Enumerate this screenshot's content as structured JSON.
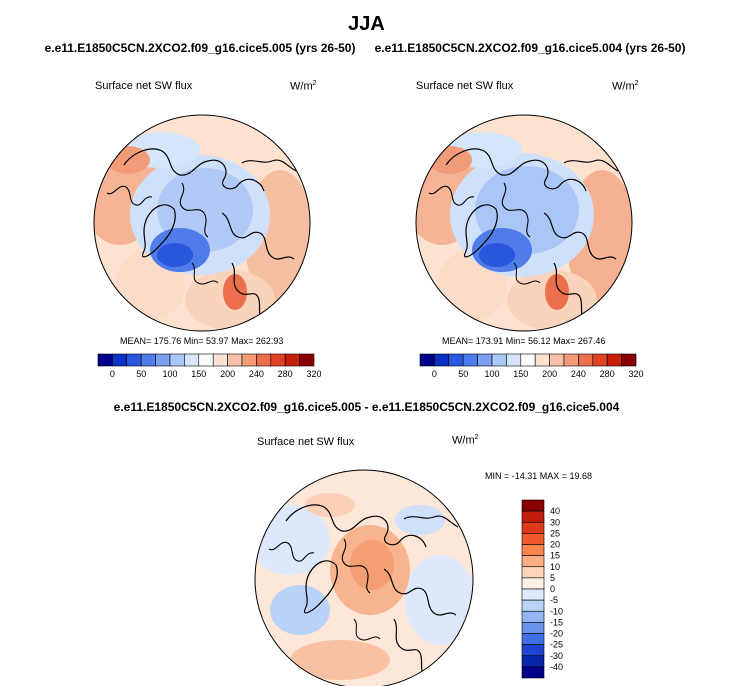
{
  "header": {
    "season": "JJA",
    "case_left": "e.e11.E1850C5CN.2XCO2.f09_g16.cice5.005 (yrs 26-50)",
    "case_right": "e.e11.E1850C5CN.2XCO2.f09_g16.cice5.004 (yrs 26-50)",
    "diff_title": "e.e11.E1850C5CN.2XCO2.f09_g16.cice5.005 - e.e11.E1850C5CN.2XCO2.f09_g16.cice5.004"
  },
  "panels": {
    "left": {
      "variable": "Surface net SW flux",
      "unit": "W/m",
      "unit_exp": "2",
      "stats": "MEAN= 175.76  Min= 53.97  Max= 262.93"
    },
    "right": {
      "variable": "Surface net SW flux",
      "unit": "W/m",
      "unit_exp": "2",
      "stats": "MEAN= 173.91  Min= 56.12  Max= 267.46"
    },
    "diff": {
      "variable": "Surface net SW flux",
      "unit": "W/m",
      "unit_exp": "2",
      "stats": "MIN = -14.31 MAX =  19.68"
    }
  },
  "colorbar_abs": {
    "colors": [
      "#00008b",
      "#0c2fc4",
      "#2a56de",
      "#4f7ce8",
      "#7aa1f0",
      "#a9c6f7",
      "#d5e6fb",
      "#fdfdfd",
      "#fde3d3",
      "#f9c1a5",
      "#f29b78",
      "#ea6f4a",
      "#df4223",
      "#c71e0c",
      "#8a0000"
    ],
    "labels": [
      "0",
      "50",
      "100",
      "150",
      "200",
      "240",
      "280",
      "320"
    ]
  },
  "colorbar_diff": {
    "colors": [
      "#8a0000",
      "#c21d0c",
      "#dd3a1c",
      "#ef5a2d",
      "#f8844f",
      "#fbae84",
      "#fdd4b8",
      "#fdf0e6",
      "#dde9fb",
      "#b9d2f7",
      "#92b6f2",
      "#6894ea",
      "#4170e3",
      "#1e45d2",
      "#0a24a8",
      "#00008b"
    ],
    "labels": [
      "40",
      "30",
      "25",
      "20",
      "15",
      "10",
      "5",
      "0",
      "-5",
      "-10",
      "-15",
      "-20",
      "-25",
      "-30",
      "-40"
    ]
  }
}
